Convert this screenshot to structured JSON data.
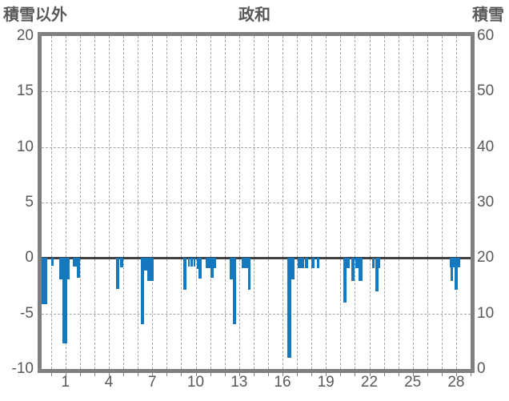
{
  "header": {
    "left_axis_title": "積雪以外",
    "chart_title": "政和",
    "right_axis_title": "積雪"
  },
  "chart_data": {
    "type": "bar",
    "title": "政和",
    "left_axis": {
      "label": "積雪以外",
      "min": -10,
      "max": 20,
      "ticks": [
        20,
        15,
        10,
        5,
        0,
        -5,
        -10
      ]
    },
    "right_axis": {
      "label": "積雪",
      "min": 0,
      "max": 60,
      "ticks": [
        60,
        50,
        40,
        30,
        20,
        10,
        0
      ]
    },
    "x_axis": {
      "min": -0.65,
      "max": 29.0,
      "grid_step": 1,
      "tick_labels": [
        1,
        4,
        7,
        10,
        13,
        16,
        19,
        22,
        25,
        28
      ]
    },
    "grid": "dashed, every day vertical, every 5 units horizontal",
    "legend_position": "none",
    "colors": {
      "bar": "#1679c0",
      "border": "#808080",
      "grid": "#a6a6a6",
      "zero_line": "#404040",
      "text": "#595959",
      "background": "#ffffff"
    },
    "bars": [
      {
        "x": -0.45,
        "w": 0.4,
        "v": -4.2
      },
      {
        "x": 0.08,
        "w": 0.18,
        "v": -0.7
      },
      {
        "x": 0.69,
        "w": 0.22,
        "v": -1.9
      },
      {
        "x": 0.96,
        "w": 0.33,
        "v": -7.7
      },
      {
        "x": 1.2,
        "w": 0.15,
        "v": -1.9
      },
      {
        "x": 1.73,
        "w": 0.46,
        "v": -0.75
      },
      {
        "x": 1.9,
        "w": 0.2,
        "v": -1.8
      },
      {
        "x": 4.62,
        "w": 0.24,
        "v": -2.8
      },
      {
        "x": 4.86,
        "w": 0.22,
        "v": -0.85
      },
      {
        "x": 6.3,
        "w": 0.24,
        "v": -6.0
      },
      {
        "x": 6.54,
        "w": 0.22,
        "v": -1.1
      },
      {
        "x": 6.88,
        "w": 0.45,
        "v": -2.05
      },
      {
        "x": 9.24,
        "w": 0.22,
        "v": -2.85
      },
      {
        "x": 9.53,
        "w": 0.13,
        "v": -0.8
      },
      {
        "x": 9.72,
        "w": 0.13,
        "v": -0.8
      },
      {
        "x": 9.9,
        "w": 0.13,
        "v": -0.8
      },
      {
        "x": 10.13,
        "w": 0.15,
        "v": -1.0
      },
      {
        "x": 10.32,
        "w": 0.22,
        "v": -1.85
      },
      {
        "x": 10.87,
        "w": 0.33,
        "v": -0.9
      },
      {
        "x": 11.14,
        "w": 0.22,
        "v": -1.8
      },
      {
        "x": 11.34,
        "w": 0.18,
        "v": -0.9
      },
      {
        "x": 12.46,
        "w": 0.2,
        "v": -1.95
      },
      {
        "x": 12.67,
        "w": 0.22,
        "v": -6.0
      },
      {
        "x": 13.4,
        "w": 0.42,
        "v": -0.9
      },
      {
        "x": 13.69,
        "w": 0.17,
        "v": -2.9
      },
      {
        "x": 16.45,
        "w": 0.28,
        "v": -9.0
      },
      {
        "x": 16.7,
        "w": 0.22,
        "v": -1.9
      },
      {
        "x": 17.28,
        "w": 0.46,
        "v": -0.95
      },
      {
        "x": 17.67,
        "w": 0.22,
        "v": -0.95
      },
      {
        "x": 18.09,
        "w": 0.24,
        "v": -0.95
      },
      {
        "x": 18.48,
        "w": 0.19,
        "v": -0.95
      },
      {
        "x": 20.31,
        "w": 0.27,
        "v": -4.0
      },
      {
        "x": 20.54,
        "w": 0.19,
        "v": -0.95
      },
      {
        "x": 20.85,
        "w": 0.24,
        "v": -2.05
      },
      {
        "x": 21.16,
        "w": 0.24,
        "v": -0.95
      },
      {
        "x": 21.42,
        "w": 0.28,
        "v": -2.05
      },
      {
        "x": 22.29,
        "w": 0.18,
        "v": -0.95
      },
      {
        "x": 22.5,
        "w": 0.22,
        "v": -3.0
      },
      {
        "x": 22.67,
        "w": 0.12,
        "v": -0.95
      },
      {
        "x": 27.59,
        "w": 0.1,
        "v": -0.85
      },
      {
        "x": 27.69,
        "w": 0.18,
        "v": -2.05
      },
      {
        "x": 27.84,
        "w": 0.13,
        "v": -0.85
      },
      {
        "x": 28.02,
        "w": 0.22,
        "v": -2.9
      },
      {
        "x": 28.2,
        "w": 0.15,
        "v": -0.85
      }
    ]
  }
}
